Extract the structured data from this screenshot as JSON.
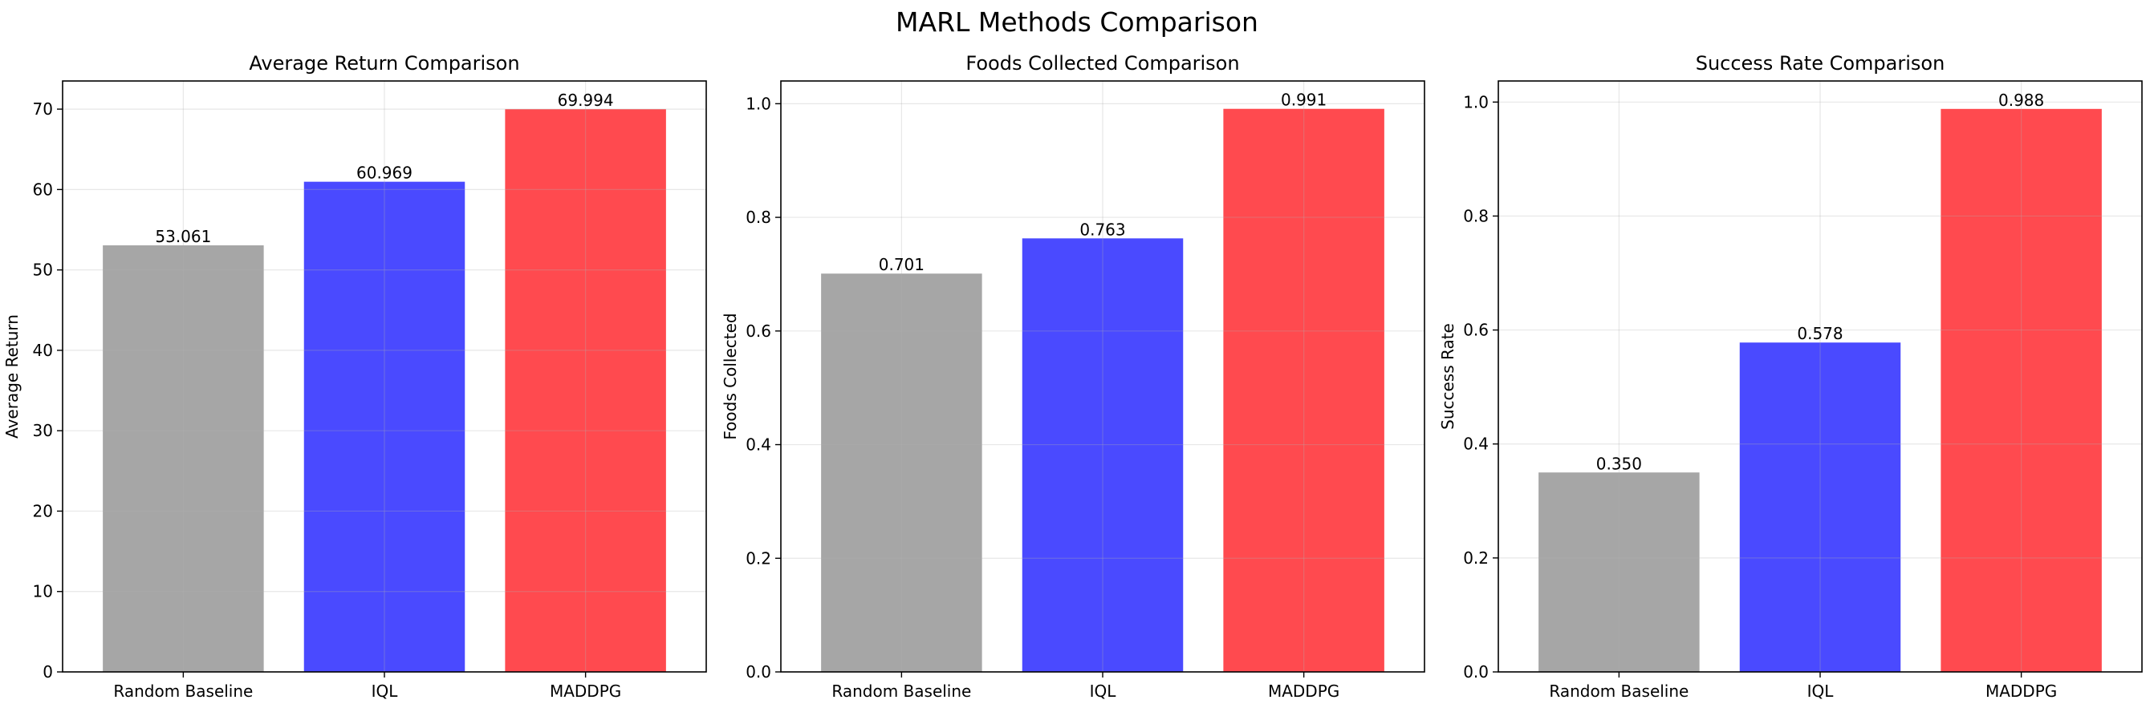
{
  "title": "MARL Methods Comparison",
  "chart_data": [
    {
      "type": "bar",
      "title": "Average Return Comparison",
      "xlabel": "",
      "ylabel": "Average Return",
      "categories": [
        "Random Baseline",
        "IQL",
        "MADDPG"
      ],
      "values": [
        53.061,
        60.969,
        69.994
      ],
      "value_labels": [
        "53.061",
        "60.969",
        "69.994"
      ],
      "colors": [
        "#a6a6a6",
        "#4a4aff",
        "#ff4a4f"
      ],
      "ylim": [
        0,
        73.5
      ],
      "yticks": [
        0,
        10,
        20,
        30,
        40,
        50,
        60,
        70
      ],
      "ytick_labels": [
        "0",
        "10",
        "20",
        "30",
        "40",
        "50",
        "60",
        "70"
      ],
      "grid": true
    },
    {
      "type": "bar",
      "title": "Foods Collected Comparison",
      "xlabel": "",
      "ylabel": "Foods Collected",
      "categories": [
        "Random Baseline",
        "IQL",
        "MADDPG"
      ],
      "values": [
        0.701,
        0.763,
        0.991
      ],
      "value_labels": [
        "0.701",
        "0.763",
        "0.991"
      ],
      "colors": [
        "#a6a6a6",
        "#4a4aff",
        "#ff4a4f"
      ],
      "ylim": [
        0,
        1.04
      ],
      "yticks": [
        0,
        0.2,
        0.4,
        0.6,
        0.8,
        1.0
      ],
      "ytick_labels": [
        "0.0",
        "0.2",
        "0.4",
        "0.6",
        "0.8",
        "1.0"
      ],
      "grid": true
    },
    {
      "type": "bar",
      "title": "Success Rate Comparison",
      "xlabel": "",
      "ylabel": "Success Rate",
      "categories": [
        "Random Baseline",
        "IQL",
        "MADDPG"
      ],
      "values": [
        0.35,
        0.578,
        0.988
      ],
      "value_labels": [
        "0.350",
        "0.578",
        "0.988"
      ],
      "colors": [
        "#a6a6a6",
        "#4a4aff",
        "#ff4a4f"
      ],
      "ylim": [
        0,
        1.037
      ],
      "yticks": [
        0,
        0.2,
        0.4,
        0.6,
        0.8,
        1.0
      ],
      "ytick_labels": [
        "0.0",
        "0.2",
        "0.4",
        "0.6",
        "0.8",
        "1.0"
      ],
      "grid": true
    }
  ]
}
